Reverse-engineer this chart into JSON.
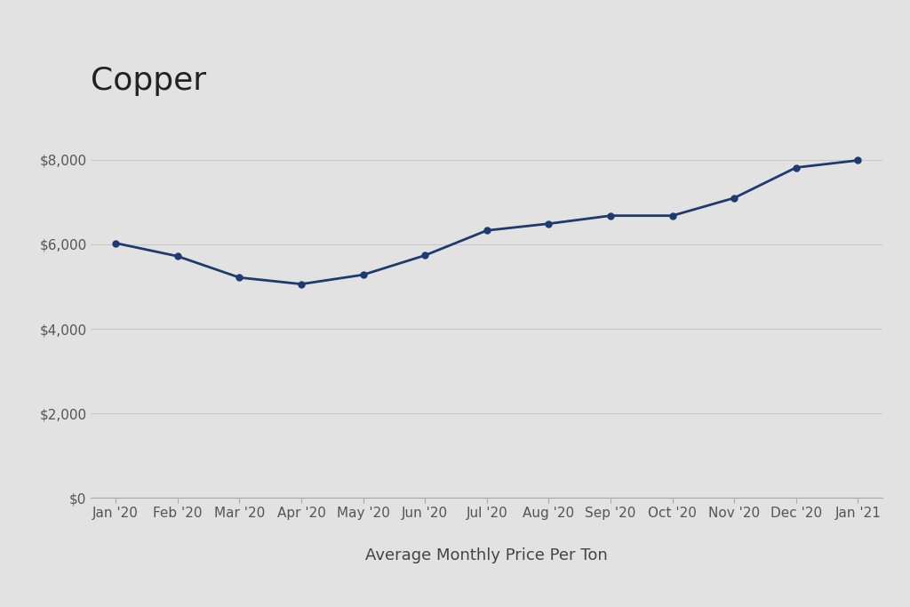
{
  "title": "Copper",
  "xlabel": "Average Monthly Price Per Ton",
  "background_color": "#e2e2e2",
  "plot_bg_color": "#e2e2e2",
  "line_color": "#1e3a6e",
  "marker_color": "#1e3a6e",
  "categories": [
    "Jan '20",
    "Feb '20",
    "Mar '20",
    "Apr '20",
    "May '20",
    "Jun '20",
    "Jul '20",
    "Aug '20",
    "Sep '20",
    "Oct '20",
    "Nov '20",
    "Dec '20",
    "Jan '21"
  ],
  "values": [
    6030,
    5720,
    5215,
    5060,
    5280,
    5740,
    6330,
    6490,
    6680,
    6680,
    7100,
    7820,
    7990
  ],
  "ylim": [
    0,
    9200
  ],
  "yticks": [
    0,
    2000,
    4000,
    6000,
    8000
  ],
  "ytick_labels": [
    "$0",
    "$2,000",
    "$4,000",
    "$6,000",
    "$8,000"
  ],
  "title_fontsize": 26,
  "xlabel_fontsize": 13,
  "tick_fontsize": 11,
  "grid_color": "#c8c8c8",
  "line_width": 2.0,
  "marker_size": 5
}
